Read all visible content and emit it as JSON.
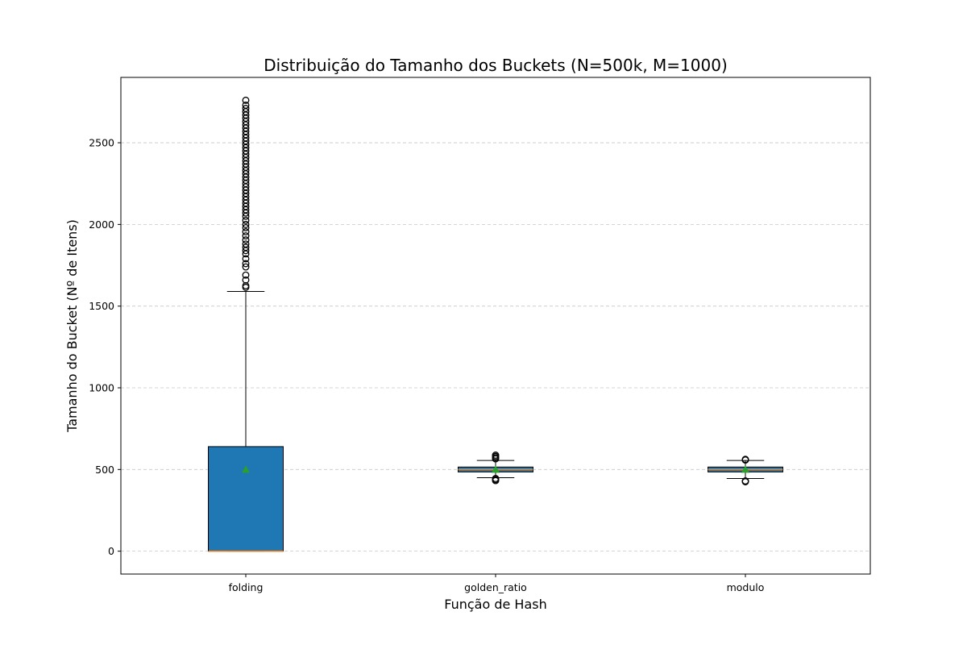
{
  "chart_data": {
    "type": "box",
    "title": "Distribuição do Tamanho dos Buckets (N=500k, M=1000)",
    "xlabel": "Função de Hash",
    "ylabel": "Tamanho do Bucket (Nº de Itens)",
    "ylim": [
      -140,
      2900
    ],
    "yticks": [
      0,
      500,
      1000,
      1500,
      2000,
      2500
    ],
    "grid": "y-dashed",
    "categories": [
      "folding",
      "golden_ratio",
      "modulo"
    ],
    "boxes": [
      {
        "category": "folding",
        "whisker_low": 0,
        "q1": 0,
        "median": 0,
        "mean": 500,
        "q3": 640,
        "whisker_high": 1590,
        "outliers": [
          1615,
          1625,
          1660,
          1690,
          1740,
          1760,
          1790,
          1820,
          1840,
          1860,
          1880,
          1905,
          1930,
          1955,
          1980,
          2000,
          2025,
          2050,
          2070,
          2090,
          2110,
          2130,
          2150,
          2170,
          2190,
          2210,
          2230,
          2250,
          2270,
          2290,
          2310,
          2330,
          2350,
          2370,
          2390,
          2410,
          2430,
          2450,
          2470,
          2490,
          2510,
          2530,
          2550,
          2570,
          2590,
          2610,
          2630,
          2650,
          2670,
          2690,
          2710,
          2730,
          2760
        ],
        "color": "#1f77b4"
      },
      {
        "category": "golden_ratio",
        "whisker_low": 450,
        "q1": 485,
        "median": 500,
        "mean": 500,
        "q3": 515,
        "whisker_high": 555,
        "outliers": [
          432,
          438,
          445,
          565,
          572,
          580,
          588
        ],
        "color": "#1f77b4"
      },
      {
        "category": "modulo",
        "whisker_low": 445,
        "q1": 485,
        "median": 500,
        "mean": 500,
        "q3": 515,
        "whisker_high": 555,
        "outliers": [
          425,
          430,
          558,
          562
        ],
        "color": "#1f77b4"
      }
    ],
    "median_color": "#ff7f0e",
    "mean_color": "#2ca02c",
    "mean_marker": "triangle"
  }
}
